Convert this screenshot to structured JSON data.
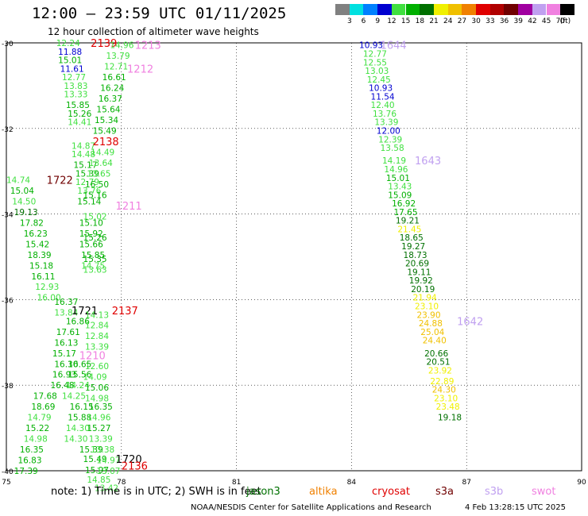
{
  "header": {
    "title": "12:00 – 23:59 UTC 01/11/2025",
    "subtitle": "12 hour collection of altimeter wave heights"
  },
  "legend": {
    "unit": "(ft)",
    "items": [
      {
        "label": "3",
        "color": "#808080"
      },
      {
        "label": "6",
        "color": "#00e0e0"
      },
      {
        "label": "9",
        "color": "#0080ff"
      },
      {
        "label": "12",
        "color": "#0000d0"
      },
      {
        "label": "15",
        "color": "#40e040"
      },
      {
        "label": "18",
        "color": "#00b000"
      },
      {
        "label": "21",
        "color": "#007000"
      },
      {
        "label": "24",
        "color": "#f0f000"
      },
      {
        "label": "27",
        "color": "#f0c000"
      },
      {
        "label": "30",
        "color": "#f08000"
      },
      {
        "label": "33",
        "color": "#e00000"
      },
      {
        "label": "36",
        "color": "#b00000"
      },
      {
        "label": "39",
        "color": "#700000"
      },
      {
        "label": "42",
        "color": "#a000a0"
      },
      {
        "label": "45",
        "color": "#c0a0f0"
      },
      {
        "label": "70",
        "color": "#f080e0"
      },
      {
        "label": "",
        "color": "#000000"
      }
    ]
  },
  "chart_data": {
    "type": "scatter",
    "xlim": [
      75,
      90
    ],
    "ylim": [
      -40,
      -30
    ],
    "xticks": [
      "75",
      "78",
      "81",
      "84",
      "87",
      "90"
    ],
    "yticks": [
      "-30",
      "-32",
      "-34",
      "-36",
      "-38",
      "-40"
    ],
    "grid": true,
    "points": [
      {
        "x": 84.2,
        "y": -30.05,
        "label": "10.93",
        "color": "#0000d0"
      },
      {
        "x": 84.3,
        "y": -30.25,
        "label": "12.77",
        "color": "#40e040"
      },
      {
        "x": 84.3,
        "y": -30.45,
        "label": "12.55",
        "color": "#40e040"
      },
      {
        "x": 84.35,
        "y": -30.65,
        "label": "13.03",
        "color": "#40e040"
      },
      {
        "x": 84.4,
        "y": -30.85,
        "label": "12.45",
        "color": "#40e040"
      },
      {
        "x": 84.45,
        "y": -31.05,
        "label": "10.93",
        "color": "#0000d0"
      },
      {
        "x": 84.5,
        "y": -31.25,
        "label": "11.54",
        "color": "#0000d0"
      },
      {
        "x": 84.5,
        "y": -31.45,
        "label": "12.40",
        "color": "#40e040"
      },
      {
        "x": 84.55,
        "y": -31.65,
        "label": "13.76",
        "color": "#40e040"
      },
      {
        "x": 84.6,
        "y": -31.85,
        "label": "13.39",
        "color": "#40e040"
      },
      {
        "x": 84.65,
        "y": -32.05,
        "label": "12.00",
        "color": "#0000d0"
      },
      {
        "x": 84.7,
        "y": -32.25,
        "label": "12.39",
        "color": "#40e040"
      },
      {
        "x": 84.75,
        "y": -32.45,
        "label": "13.58",
        "color": "#40e040"
      },
      {
        "x": 84.8,
        "y": -32.75,
        "label": "14.19",
        "color": "#40e040"
      },
      {
        "x": 84.85,
        "y": -32.95,
        "label": "14.96",
        "color": "#40e040"
      },
      {
        "x": 84.9,
        "y": -33.15,
        "label": "15.01",
        "color": "#00b000"
      },
      {
        "x": 84.95,
        "y": -33.35,
        "label": "13.43",
        "color": "#40e040"
      },
      {
        "x": 84.95,
        "y": -33.55,
        "label": "15.09",
        "color": "#00b000"
      },
      {
        "x": 85.05,
        "y": -33.75,
        "label": "16.92",
        "color": "#00b000"
      },
      {
        "x": 85.1,
        "y": -33.95,
        "label": "17.65",
        "color": "#00b000"
      },
      {
        "x": 85.15,
        "y": -34.15,
        "label": "19.21",
        "color": "#007000"
      },
      {
        "x": 85.2,
        "y": -34.35,
        "label": "21.45",
        "color": "#f0f000"
      },
      {
        "x": 85.25,
        "y": -34.55,
        "label": "18.65",
        "color": "#007000"
      },
      {
        "x": 85.3,
        "y": -34.75,
        "label": "19.27",
        "color": "#007000"
      },
      {
        "x": 85.35,
        "y": -34.95,
        "label": "18.73",
        "color": "#007000"
      },
      {
        "x": 85.4,
        "y": -35.15,
        "label": "20.69",
        "color": "#007000"
      },
      {
        "x": 85.45,
        "y": -35.35,
        "label": "19.11",
        "color": "#007000"
      },
      {
        "x": 85.5,
        "y": -35.55,
        "label": "19.92",
        "color": "#007000"
      },
      {
        "x": 85.55,
        "y": -35.75,
        "label": "20.19",
        "color": "#007000"
      },
      {
        "x": 85.6,
        "y": -35.95,
        "label": "21.94",
        "color": "#f0f000"
      },
      {
        "x": 85.65,
        "y": -36.15,
        "label": "23.10",
        "color": "#f0f000"
      },
      {
        "x": 85.7,
        "y": -36.35,
        "label": "23.90",
        "color": "#f0c000"
      },
      {
        "x": 85.75,
        "y": -36.55,
        "label": "24.88",
        "color": "#f0c000"
      },
      {
        "x": 85.8,
        "y": -36.75,
        "label": "25.04",
        "color": "#f0c000"
      },
      {
        "x": 85.85,
        "y": -36.95,
        "label": "24.40",
        "color": "#f0c000"
      },
      {
        "x": 85.9,
        "y": -37.25,
        "label": "20.66",
        "color": "#007000"
      },
      {
        "x": 85.95,
        "y": -37.45,
        "label": "20.51",
        "color": "#007000"
      },
      {
        "x": 86.0,
        "y": -37.65,
        "label": "23.92",
        "color": "#f0f000"
      },
      {
        "x": 86.05,
        "y": -37.9,
        "label": "22.89",
        "color": "#f0f000"
      },
      {
        "x": 86.1,
        "y": -38.1,
        "label": "24.30",
        "color": "#f0c000"
      },
      {
        "x": 86.15,
        "y": -38.3,
        "label": "23.10",
        "color": "#f0f000"
      },
      {
        "x": 86.2,
        "y": -38.5,
        "label": "23.48",
        "color": "#f0f000"
      },
      {
        "x": 86.25,
        "y": -38.75,
        "label": "19.18",
        "color": "#007000"
      },
      {
        "x": 76.3,
        "y": -30.0,
        "label": "12.24",
        "color": "#40e040"
      },
      {
        "x": 76.35,
        "y": -30.2,
        "label": "11.88",
        "color": "#0000d0"
      },
      {
        "x": 76.35,
        "y": -30.4,
        "label": "15.01",
        "color": "#00b000"
      },
      {
        "x": 76.4,
        "y": -30.6,
        "label": "11.61",
        "color": "#0000d0"
      },
      {
        "x": 76.45,
        "y": -30.8,
        "label": "12.77",
        "color": "#40e040"
      },
      {
        "x": 76.5,
        "y": -31.0,
        "label": "13.83",
        "color": "#40e040"
      },
      {
        "x": 76.5,
        "y": -31.2,
        "label": "13.33",
        "color": "#40e040"
      },
      {
        "x": 76.55,
        "y": -31.45,
        "label": "15.85",
        "color": "#00b000"
      },
      {
        "x": 76.6,
        "y": -31.65,
        "label": "15.26",
        "color": "#00b000"
      },
      {
        "x": 76.6,
        "y": -31.85,
        "label": "14.41",
        "color": "#40e040"
      },
      {
        "x": 76.7,
        "y": -32.4,
        "label": "14.87",
        "color": "#40e040"
      },
      {
        "x": 76.7,
        "y": -32.6,
        "label": "14.48",
        "color": "#40e040"
      },
      {
        "x": 76.75,
        "y": -32.85,
        "label": "15.17",
        "color": "#00b000"
      },
      {
        "x": 76.8,
        "y": -33.05,
        "label": "15.39",
        "color": "#00b000"
      },
      {
        "x": 76.8,
        "y": -33.25,
        "label": "12.79",
        "color": "#40e040"
      },
      {
        "x": 76.85,
        "y": -33.45,
        "label": "13.76",
        "color": "#40e040"
      },
      {
        "x": 76.85,
        "y": -33.7,
        "label": "15.14",
        "color": "#00b000"
      },
      {
        "x": 76.9,
        "y": -34.2,
        "label": "15.10",
        "color": "#00b000"
      },
      {
        "x": 76.9,
        "y": -34.45,
        "label": "15.92",
        "color": "#00b000"
      },
      {
        "x": 76.9,
        "y": -34.7,
        "label": "15.66",
        "color": "#00b000"
      },
      {
        "x": 76.95,
        "y": -34.95,
        "label": "15.85",
        "color": "#00b000"
      },
      {
        "x": 76.95,
        "y": -35.2,
        "label": "14.75",
        "color": "#40e040"
      },
      {
        "x": 77.2,
        "y": -30.0,
        "label": "2139",
        "color": "#e00000",
        "big": true
      },
      {
        "x": 78.35,
        "y": -30.05,
        "label": "1213",
        "color": "#f080e0",
        "big": true
      },
      {
        "x": 78.15,
        "y": -30.6,
        "label": "1212",
        "color": "#f080e0",
        "big": true
      },
      {
        "x": 77.7,
        "y": -30.05,
        "label": "14.96",
        "color": "#40e040"
      },
      {
        "x": 77.6,
        "y": -30.3,
        "label": "13.79",
        "color": "#40e040"
      },
      {
        "x": 77.55,
        "y": -30.55,
        "label": "12.71",
        "color": "#40e040"
      },
      {
        "x": 77.5,
        "y": -30.8,
        "label": "16.61",
        "color": "#00b000"
      },
      {
        "x": 77.45,
        "y": -31.05,
        "label": "16.24",
        "color": "#00b000"
      },
      {
        "x": 77.4,
        "y": -31.3,
        "label": "16.37",
        "color": "#00b000"
      },
      {
        "x": 77.35,
        "y": -31.55,
        "label": "15.64",
        "color": "#00b000"
      },
      {
        "x": 77.3,
        "y": -31.8,
        "label": "15.34",
        "color": "#00b000"
      },
      {
        "x": 77.25,
        "y": -32.05,
        "label": "15.49",
        "color": "#00b000"
      },
      {
        "x": 77.25,
        "y": -32.3,
        "label": "2138",
        "color": "#e00000",
        "big": true
      },
      {
        "x": 77.2,
        "y": -32.55,
        "label": "14.49",
        "color": "#40e040"
      },
      {
        "x": 77.15,
        "y": -32.8,
        "label": "13.64",
        "color": "#40e040"
      },
      {
        "x": 77.1,
        "y": -33.05,
        "label": "13.65",
        "color": "#40e040"
      },
      {
        "x": 77.05,
        "y": -33.3,
        "label": "16.50",
        "color": "#00b000"
      },
      {
        "x": 77.0,
        "y": -33.55,
        "label": "15.16",
        "color": "#00b000"
      },
      {
        "x": 77.85,
        "y": -33.8,
        "label": "1211",
        "color": "#f080e0",
        "big": true
      },
      {
        "x": 77.0,
        "y": -34.05,
        "label": "15.02",
        "color": "#40e040"
      },
      {
        "x": 77.0,
        "y": -34.55,
        "label": "15.26",
        "color": "#00b000"
      },
      {
        "x": 77.0,
        "y": -35.05,
        "label": "15.35",
        "color": "#00b000"
      },
      {
        "x": 77.0,
        "y": -35.3,
        "label": "13.63",
        "color": "#40e040"
      },
      {
        "x": 75.0,
        "y": -33.2,
        "label": "14.74",
        "color": "#40e040"
      },
      {
        "x": 75.1,
        "y": -33.45,
        "label": "15.04",
        "color": "#00b000"
      },
      {
        "x": 75.15,
        "y": -33.7,
        "label": "14.50",
        "color": "#40e040"
      },
      {
        "x": 75.2,
        "y": -33.95,
        "label": "19.13",
        "color": "#007000"
      },
      {
        "x": 75.35,
        "y": -34.2,
        "label": "17.82",
        "color": "#00b000"
      },
      {
        "x": 75.45,
        "y": -34.45,
        "label": "16.23",
        "color": "#00b000"
      },
      {
        "x": 75.5,
        "y": -34.7,
        "label": "15.42",
        "color": "#00b000"
      },
      {
        "x": 75.55,
        "y": -34.95,
        "label": "18.39",
        "color": "#00b000"
      },
      {
        "x": 75.6,
        "y": -35.2,
        "label": "15.18",
        "color": "#00b000"
      },
      {
        "x": 75.65,
        "y": -35.45,
        "label": "16.11",
        "color": "#00b000"
      },
      {
        "x": 75.75,
        "y": -35.7,
        "label": "12.93",
        "color": "#40e040"
      },
      {
        "x": 75.8,
        "y": -35.95,
        "label": "16.00",
        "color": "#40e040"
      },
      {
        "x": 76.05,
        "y": -33.2,
        "label": "1722",
        "color": "#700000",
        "big": true
      },
      {
        "x": 76.25,
        "y": -36.05,
        "label": "16.37",
        "color": "#00b000"
      },
      {
        "x": 76.25,
        "y": -36.3,
        "label": "13.84",
        "color": "#40e040"
      },
      {
        "x": 76.7,
        "y": -36.25,
        "label": "1721",
        "color": "#000000",
        "big": true
      },
      {
        "x": 77.75,
        "y": -36.25,
        "label": "2137",
        "color": "#e00000",
        "big": true
      },
      {
        "x": 76.55,
        "y": -36.5,
        "label": "16.86",
        "color": "#00b000"
      },
      {
        "x": 76.3,
        "y": -36.75,
        "label": "17.61",
        "color": "#00b000"
      },
      {
        "x": 76.25,
        "y": -37.0,
        "label": "16.13",
        "color": "#00b000"
      },
      {
        "x": 76.2,
        "y": -37.25,
        "label": "15.17",
        "color": "#00b000"
      },
      {
        "x": 76.25,
        "y": -37.5,
        "label": "16.30",
        "color": "#00b000"
      },
      {
        "x": 76.2,
        "y": -37.75,
        "label": "16.93",
        "color": "#00b000"
      },
      {
        "x": 76.15,
        "y": -38.0,
        "label": "16.48",
        "color": "#00b000"
      },
      {
        "x": 77.05,
        "y": -36.35,
        "label": "14.13",
        "color": "#40e040"
      },
      {
        "x": 77.05,
        "y": -36.6,
        "label": "12.84",
        "color": "#40e040"
      },
      {
        "x": 77.05,
        "y": -36.85,
        "label": "12.84",
        "color": "#40e040"
      },
      {
        "x": 77.05,
        "y": -37.1,
        "label": "13.39",
        "color": "#40e040"
      },
      {
        "x": 76.9,
        "y": -37.3,
        "label": "1210",
        "color": "#f080e0",
        "big": true
      },
      {
        "x": 77.05,
        "y": -37.55,
        "label": "12.60",
        "color": "#40e040"
      },
      {
        "x": 76.6,
        "y": -37.5,
        "label": "16.65",
        "color": "#00b000"
      },
      {
        "x": 76.6,
        "y": -37.75,
        "label": "15.56",
        "color": "#00b000"
      },
      {
        "x": 77.0,
        "y": -37.8,
        "label": "14.09",
        "color": "#40e040"
      },
      {
        "x": 76.55,
        "y": -38.0,
        "label": "14.24",
        "color": "#40e040"
      },
      {
        "x": 77.05,
        "y": -38.05,
        "label": "15.06",
        "color": "#00b000"
      },
      {
        "x": 76.45,
        "y": -38.25,
        "label": "14.25",
        "color": "#40e040"
      },
      {
        "x": 77.05,
        "y": -38.3,
        "label": "14.98",
        "color": "#40e040"
      },
      {
        "x": 75.7,
        "y": -38.25,
        "label": "17.68",
        "color": "#00b000"
      },
      {
        "x": 75.65,
        "y": -38.5,
        "label": "18.69",
        "color": "#00b000"
      },
      {
        "x": 75.55,
        "y": -38.75,
        "label": "14.79",
        "color": "#40e040"
      },
      {
        "x": 75.5,
        "y": -39.0,
        "label": "15.22",
        "color": "#00b000"
      },
      {
        "x": 75.45,
        "y": -39.25,
        "label": "14.98",
        "color": "#40e040"
      },
      {
        "x": 75.35,
        "y": -39.5,
        "label": "16.35",
        "color": "#00b000"
      },
      {
        "x": 75.3,
        "y": -39.75,
        "label": "16.83",
        "color": "#00b000"
      },
      {
        "x": 75.2,
        "y": -40.0,
        "label": "17.39",
        "color": "#00b000"
      },
      {
        "x": 76.65,
        "y": -38.5,
        "label": "16.15",
        "color": "#00b000"
      },
      {
        "x": 77.15,
        "y": -38.5,
        "label": "16.35",
        "color": "#00b000"
      },
      {
        "x": 76.6,
        "y": -38.75,
        "label": "15.88",
        "color": "#00b000"
      },
      {
        "x": 77.1,
        "y": -38.75,
        "label": "14.96",
        "color": "#40e040"
      },
      {
        "x": 76.55,
        "y": -39.0,
        "label": "14.30",
        "color": "#40e040"
      },
      {
        "x": 77.1,
        "y": -39.0,
        "label": "15.27",
        "color": "#00b000"
      },
      {
        "x": 76.5,
        "y": -39.25,
        "label": "14.30",
        "color": "#40e040"
      },
      {
        "x": 77.15,
        "y": -39.25,
        "label": "13.39",
        "color": "#40e040"
      },
      {
        "x": 76.9,
        "y": -39.5,
        "label": "15.39",
        "color": "#00b000"
      },
      {
        "x": 77.2,
        "y": -39.5,
        "label": "13.38",
        "color": "#40e040"
      },
      {
        "x": 77.0,
        "y": -39.72,
        "label": "15.49",
        "color": "#00b000"
      },
      {
        "x": 77.05,
        "y": -39.98,
        "label": "15.97",
        "color": "#00b000"
      },
      {
        "x": 77.1,
        "y": -40.2,
        "label": "14.85",
        "color": "#40e040"
      },
      {
        "x": 77.3,
        "y": -40.4,
        "label": "13.42",
        "color": "#40e040"
      },
      {
        "x": 77.35,
        "y": -39.75,
        "label": "14.97",
        "color": "#40e040"
      },
      {
        "x": 77.35,
        "y": -40.0,
        "label": "13.07",
        "color": "#40e040"
      },
      {
        "x": 77.85,
        "y": -39.72,
        "label": "1720",
        "color": "#000000",
        "big": true
      },
      {
        "x": 78.0,
        "y": -39.88,
        "label": "2136",
        "color": "#e00000",
        "big": true
      },
      {
        "x": 84.75,
        "y": -30.05,
        "label": "1644",
        "color": "#c0a0f0",
        "big": true
      },
      {
        "x": 85.65,
        "y": -32.75,
        "label": "1643",
        "color": "#c0a0f0",
        "big": true
      },
      {
        "x": 86.75,
        "y": -36.5,
        "label": "1642",
        "color": "#c0a0f0",
        "big": true
      }
    ]
  },
  "footer": {
    "note": "note: 1) Time is in UTC; 2) SWH is in feet",
    "satellites": [
      {
        "label": "jason3",
        "color": "#007000"
      },
      {
        "label": "altika",
        "color": "#f08000"
      },
      {
        "label": "cryosat",
        "color": "#e00000"
      },
      {
        "label": "s3a",
        "color": "#700000"
      },
      {
        "label": "s3b",
        "color": "#c0a0f0"
      },
      {
        "label": "swot",
        "color": "#f080e0"
      }
    ],
    "credit": "NOAA/NESDIS Center for Satellite Applications and Research",
    "timestamp": "4 Feb 13:28:15 UTC 2025"
  }
}
